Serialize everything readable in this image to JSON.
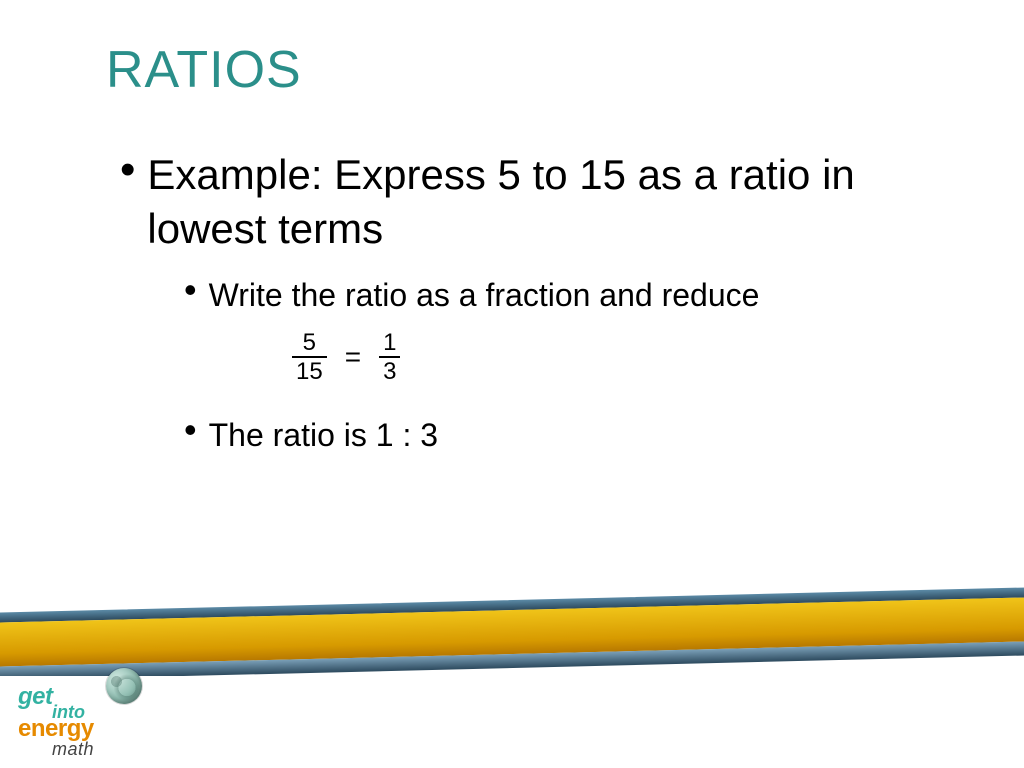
{
  "title": {
    "text": "RATIOS",
    "color": "#2b8f8a",
    "fontsize": 52
  },
  "main_bullet": {
    "text": "Example: Express 5 to 15 as a ratio in lowest terms",
    "fontsize": 42,
    "color": "#000000"
  },
  "sub_bullets": [
    {
      "text": "Write the ratio as a fraction and reduce"
    },
    {
      "text": "The ratio is 1 : 3"
    }
  ],
  "equation": {
    "lhs": {
      "numerator": "5",
      "denominator": "15"
    },
    "rhs": {
      "numerator": "1",
      "denominator": "3"
    },
    "operator": "=",
    "fontsize": 24,
    "color": "#000000"
  },
  "bands": {
    "yellow": "#e6a817",
    "blue": "#3e6379"
  },
  "logo": {
    "get": "get",
    "into": "into",
    "energy": "energy",
    "math": "math",
    "teal_color": "#33b2a2",
    "orange_color": "#e68a00",
    "gray_color": "#555555"
  },
  "background_color": "#ffffff"
}
